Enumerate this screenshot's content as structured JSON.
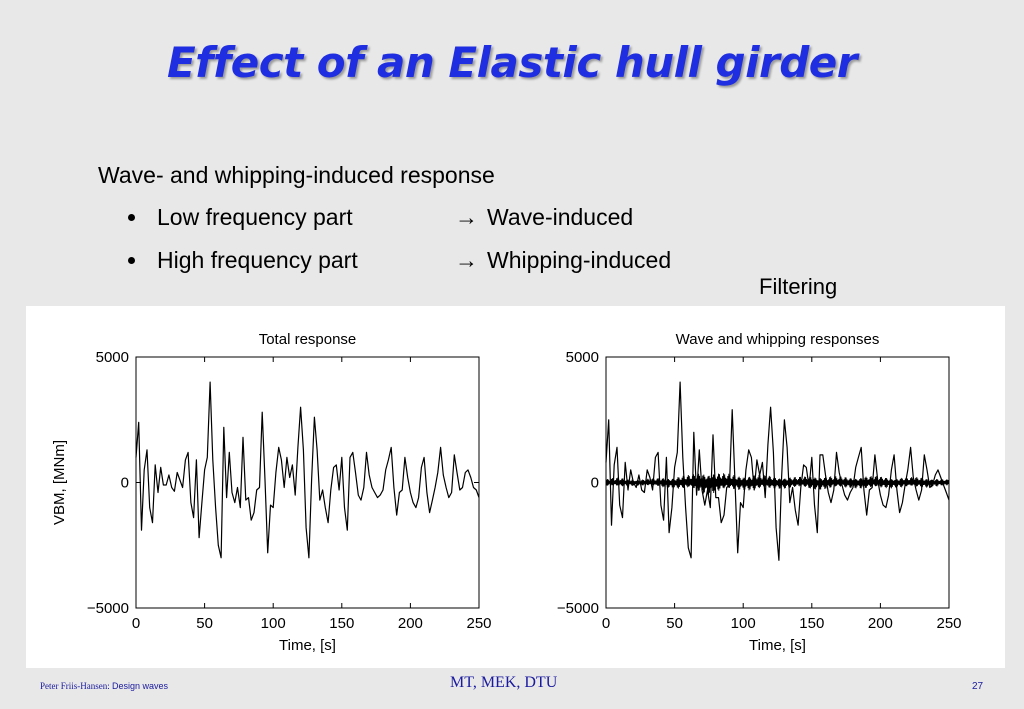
{
  "slide": {
    "title": "Effect of an Elastic hull girder",
    "lead": "Wave- and whipping-induced response",
    "bullets": [
      {
        "label": "Low frequency part",
        "arrow": "→",
        "result": "Wave-induced"
      },
      {
        "label": "High frequency part",
        "arrow": "→",
        "result": "Whipping-induced"
      }
    ],
    "annotation": "Filtering",
    "footer": {
      "author": "Peter Friis-Hansen:",
      "topic": "Design waves",
      "center": "MT, MEK, DTU",
      "page": "27"
    },
    "colors": {
      "title": "#1f2ee0",
      "background": "#e8e8e8",
      "footer": "#1a1aa0"
    }
  },
  "chart_data": [
    {
      "type": "line",
      "title": "Total response",
      "xlabel": "Time, [s]",
      "ylabel": "VBM, [MNm]",
      "xlim": [
        0,
        250
      ],
      "ylim": [
        -5000,
        5000
      ],
      "xticks": [
        "0",
        "50",
        "100",
        "150",
        "200",
        "250"
      ],
      "yticks": [
        "5000",
        "0",
        "−5000"
      ],
      "series": [
        {
          "x": [
            0,
            2,
            4,
            6,
            8,
            10,
            12,
            14,
            16,
            18,
            20,
            22,
            24,
            26,
            28,
            30,
            32,
            34,
            36,
            38,
            40,
            42,
            44,
            46,
            48,
            50,
            52,
            54,
            56,
            58,
            60,
            62,
            64,
            66,
            68,
            70,
            72,
            74,
            76,
            78,
            80,
            82,
            84,
            86,
            88,
            90,
            92,
            94,
            96,
            98,
            100,
            102,
            104,
            106,
            108,
            110,
            112,
            114,
            116,
            118,
            120,
            122,
            124,
            126,
            128,
            130,
            132,
            134,
            136,
            138,
            140,
            142,
            144,
            146,
            148,
            150,
            152,
            154,
            156,
            158,
            160,
            162,
            164,
            166,
            168,
            170,
            172,
            174,
            176,
            178,
            180,
            182,
            184,
            186,
            188,
            190,
            192,
            194,
            196,
            198,
            200,
            202,
            204,
            206,
            208,
            210,
            212,
            214,
            216,
            218,
            220,
            222,
            224,
            226,
            228,
            230,
            232,
            234,
            236,
            238,
            240,
            242,
            244,
            246,
            248,
            250
          ],
          "y": [
            1000,
            2400,
            -1900,
            500,
            1300,
            -1000,
            -1600,
            700,
            -400,
            600,
            -100,
            -100,
            300,
            -200,
            -350,
            400,
            100,
            -200,
            900,
            1200,
            -800,
            -1400,
            900,
            -2200,
            -800,
            500,
            1000,
            4000,
            900,
            -1000,
            -2500,
            -3000,
            2200,
            -600,
            1200,
            -400,
            -800,
            -200,
            -1000,
            1800,
            -700,
            -600,
            -1500,
            -1200,
            -300,
            -200,
            2800,
            100,
            -2800,
            -900,
            -1000,
            400,
            1400,
            900,
            -200,
            1000,
            200,
            700,
            -500,
            1400,
            3000,
            1300,
            -1800,
            -3000,
            100,
            2600,
            1300,
            -700,
            -300,
            -1000,
            -1600,
            -300,
            600,
            700,
            -300,
            1000,
            -1000,
            -1900,
            1000,
            1200,
            400,
            -500,
            -700,
            -200,
            1200,
            300,
            -200,
            -400,
            -600,
            -500,
            -300,
            500,
            900,
            1400,
            -200,
            -1300,
            -400,
            -300,
            1000,
            200,
            -400,
            -800,
            -1000,
            -600,
            600,
            1000,
            -400,
            -1200,
            -700,
            -200,
            400,
            1400,
            300,
            -200,
            -600,
            -400,
            1100,
            400,
            -300,
            -200,
            400,
            500,
            200,
            -200,
            -300,
            -600
          ]
        }
      ]
    },
    {
      "type": "line",
      "title": "Wave and whipping responses",
      "xlabel": "Time, [s]",
      "ylabel": "",
      "xlim": [
        0,
        250
      ],
      "ylim": [
        -5000,
        5000
      ],
      "xticks": [
        "0",
        "50",
        "100",
        "150",
        "200",
        "250"
      ],
      "yticks": [
        "5000",
        "0",
        "−5000"
      ],
      "series": [
        {
          "x": [
            0,
            2,
            4,
            6,
            8,
            10,
            12,
            14,
            16,
            18,
            20,
            22,
            24,
            26,
            28,
            30,
            32,
            34,
            36,
            38,
            40,
            42,
            44,
            46,
            48,
            50,
            52,
            54,
            56,
            58,
            60,
            62,
            64,
            66,
            68,
            70,
            72,
            74,
            76,
            78,
            80,
            82,
            84,
            86,
            88,
            90,
            92,
            94,
            96,
            98,
            100,
            102,
            104,
            106,
            108,
            110,
            112,
            114,
            116,
            118,
            120,
            122,
            124,
            126,
            128,
            130,
            132,
            134,
            136,
            138,
            140,
            142,
            144,
            146,
            148,
            150,
            152,
            154,
            156,
            158,
            160,
            162,
            164,
            166,
            168,
            170,
            172,
            174,
            176,
            178,
            180,
            182,
            184,
            186,
            188,
            190,
            192,
            194,
            196,
            198,
            200,
            202,
            204,
            206,
            208,
            210,
            212,
            214,
            216,
            218,
            220,
            222,
            224,
            226,
            228,
            230,
            232,
            234,
            236,
            238,
            240,
            242,
            244,
            246,
            248,
            250
          ],
          "y": [
            800,
            2500,
            -1700,
            700,
            1400,
            -900,
            -1400,
            800,
            -300,
            500,
            0,
            -200,
            300,
            -300,
            -400,
            500,
            200,
            -300,
            1000,
            1200,
            -900,
            -1500,
            1000,
            -2000,
            -1000,
            600,
            1200,
            4000,
            1000,
            -1000,
            -2600,
            -3000,
            2000,
            -500,
            1300,
            -300,
            -900,
            -300,
            -1000,
            1900,
            -600,
            -600,
            -1600,
            -1300,
            -200,
            -100,
            2900,
            0,
            -2800,
            -800,
            -1000,
            500,
            1300,
            1000,
            -300,
            900,
            300,
            800,
            -600,
            1500,
            3000,
            1200,
            -1800,
            -3100,
            200,
            2500,
            1400,
            -800,
            -200,
            -1100,
            -1700,
            -200,
            700,
            600,
            -200,
            1000,
            -900,
            -2000,
            1100,
            1100,
            300,
            -400,
            -800,
            -300,
            1200,
            400,
            -100,
            -500,
            -700,
            -400,
            -200,
            600,
            1000,
            1400,
            -300,
            -1300,
            -300,
            -200,
            1100,
            100,
            -500,
            -900,
            -1000,
            -500,
            500,
            1100,
            -300,
            -1200,
            -800,
            -100,
            500,
            1400,
            200,
            -300,
            -700,
            -300,
            1100,
            500,
            -200,
            -100,
            300,
            500,
            200,
            -100,
            -400,
            -700
          ]
        },
        {
          "x": [
            0,
            5,
            10,
            15,
            20,
            25,
            30,
            35,
            40,
            45,
            50,
            55,
            60,
            65,
            70,
            75,
            80,
            85,
            90,
            95,
            100,
            105,
            110,
            115,
            120,
            125,
            130,
            135,
            140,
            145,
            150,
            155,
            160,
            165,
            170,
            175,
            180,
            185,
            190,
            195,
            200,
            205,
            210,
            215,
            220,
            225,
            230,
            235,
            240,
            245,
            250
          ],
          "amplitude": [
            150,
            180,
            200,
            160,
            140,
            130,
            150,
            170,
            200,
            220,
            250,
            280,
            300,
            350,
            450,
            500,
            420,
            380,
            350,
            320,
            300,
            330,
            340,
            300,
            280,
            260,
            250,
            240,
            230,
            250,
            280,
            300,
            280,
            260,
            250,
            240,
            230,
            250,
            270,
            260,
            250,
            240,
            230,
            220,
            210,
            220,
            230,
            200,
            180,
            150,
            120
          ]
        }
      ]
    }
  ]
}
